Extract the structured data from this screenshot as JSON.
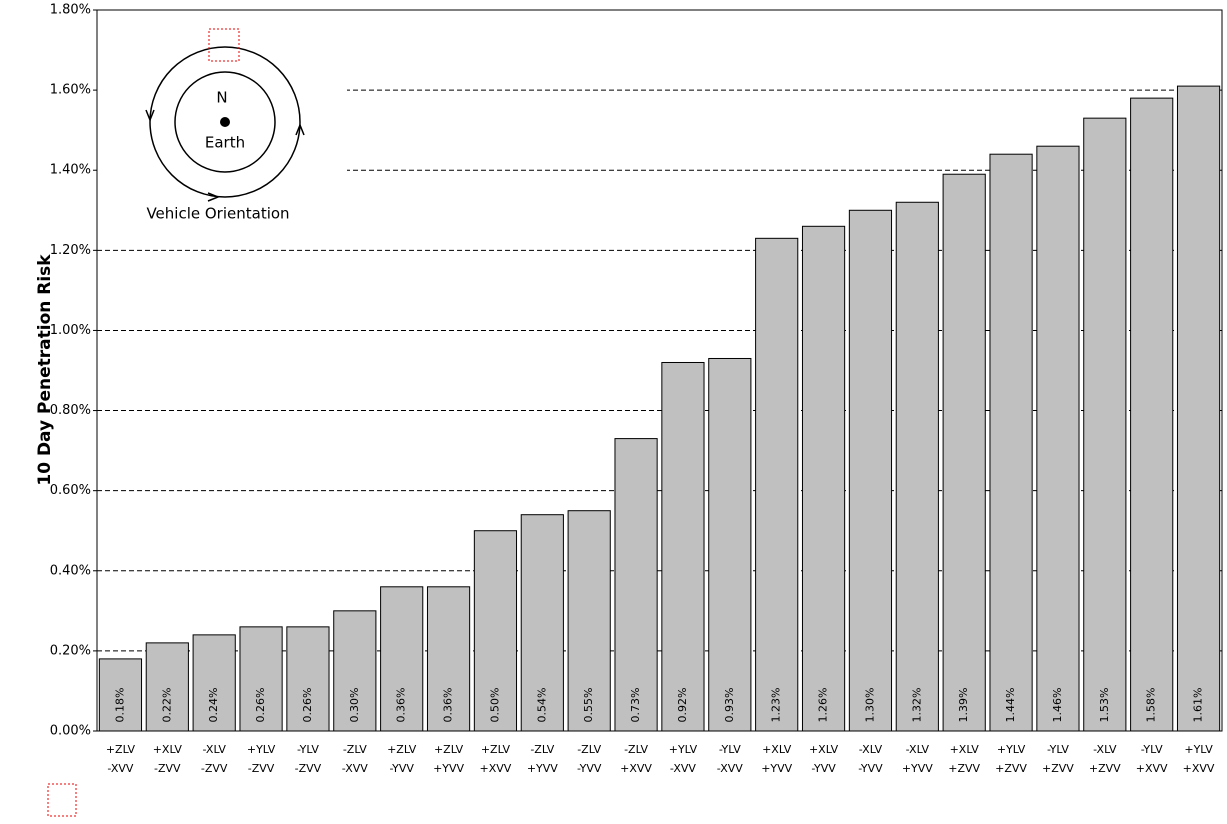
{
  "chart_data": {
    "type": "bar",
    "y_label": "10 Day Penetration Risk",
    "annotations": {
      "north": "N",
      "earth": "Earth",
      "caption": "Vehicle Orientation"
    },
    "categories": [
      [
        "+ZLV",
        "-XVV"
      ],
      [
        "+XLV",
        "-ZVV"
      ],
      [
        "-XLV",
        "-ZVV"
      ],
      [
        "+YLV",
        "-ZVV"
      ],
      [
        "-YLV",
        "-ZVV"
      ],
      [
        "-ZLV",
        "-XVV"
      ],
      [
        "+ZLV",
        "-YVV"
      ],
      [
        "+ZLV",
        "+YVV"
      ],
      [
        "+ZLV",
        "+XVV"
      ],
      [
        "-ZLV",
        "+YVV"
      ],
      [
        "-ZLV",
        "-YVV"
      ],
      [
        "-ZLV",
        "+XVV"
      ],
      [
        "+YLV",
        "-XVV"
      ],
      [
        "-YLV",
        "-XVV"
      ],
      [
        "+XLV",
        "+YVV"
      ],
      [
        "+XLV",
        "-YVV"
      ],
      [
        "-XLV",
        "-YVV"
      ],
      [
        "-XLV",
        "+YVV"
      ],
      [
        "+XLV",
        "+ZVV"
      ],
      [
        "+YLV",
        "+ZVV"
      ],
      [
        "-YLV",
        "+ZVV"
      ],
      [
        "-XLV",
        "+ZVV"
      ],
      [
        "-YLV",
        "+XVV"
      ],
      [
        "+YLV",
        "+XVV"
      ]
    ],
    "values": [
      0.18,
      0.22,
      0.24,
      0.26,
      0.26,
      0.3,
      0.36,
      0.36,
      0.5,
      0.54,
      0.55,
      0.73,
      0.92,
      0.93,
      1.23,
      1.26,
      1.3,
      1.32,
      1.39,
      1.44,
      1.46,
      1.53,
      1.58,
      1.61
    ],
    "value_labels": [
      "0.18%",
      "0.22%",
      "0.24%",
      "0.26%",
      "0.26%",
      "0.30%",
      "0.36%",
      "0.36%",
      "0.50%",
      "0.54%",
      "0.55%",
      "0.73%",
      "0.92%",
      "0.93%",
      "1.23%",
      "1.26%",
      "1.30%",
      "1.32%",
      "1.39%",
      "1.44%",
      "1.46%",
      "1.53%",
      "1.58%",
      "1.61%"
    ],
    "color": "#c0c0c0",
    "ylim": [
      0,
      1.8
    ],
    "yticks": [
      {
        "value": 0,
        "label": "0.00%"
      },
      {
        "value": 0.2,
        "label": "0.20%"
      },
      {
        "value": 0.4,
        "label": "0.40%"
      },
      {
        "value": 0.6,
        "label": "0.60%"
      },
      {
        "value": 0.8,
        "label": "0.80%"
      },
      {
        "value": 1.0,
        "label": "1.00%"
      },
      {
        "value": 1.2,
        "label": "1.20%"
      },
      {
        "value": 1.4,
        "label": "1.40%"
      },
      {
        "value": 1.6,
        "label": "1.60%"
      },
      {
        "value": 1.8,
        "label": "1.80%"
      }
    ],
    "grid": true
  }
}
